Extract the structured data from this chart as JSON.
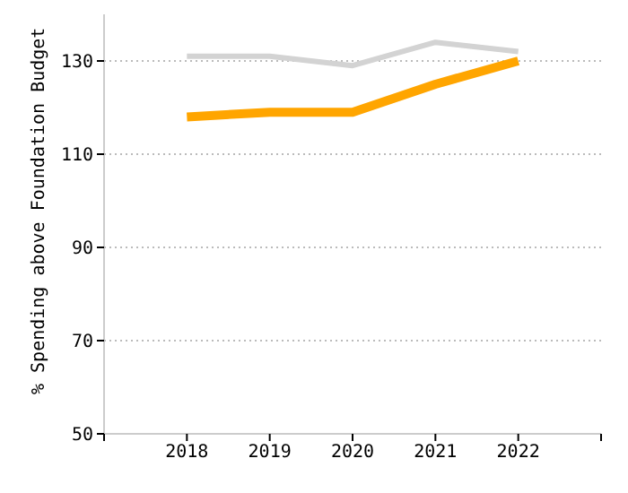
{
  "chart_data": {
    "type": "line",
    "ylabel": "% Spending above Foundation Budget",
    "x": [
      2018,
      2019,
      2020,
      2021,
      2022
    ],
    "xlim": [
      2017,
      2023
    ],
    "xticks": [
      {
        "value": 2017,
        "label": null
      },
      2018,
      2019,
      2020,
      2021,
      2022,
      {
        "value": 2023,
        "label": null
      }
    ],
    "ylim": [
      50,
      140
    ],
    "yticks": [
      50,
      70,
      90,
      110,
      130
    ],
    "grid": "y",
    "marker": "none",
    "line_style": "solid",
    "series": [
      {
        "color": "#d3d3d3",
        "values": [
          131,
          131,
          129,
          134,
          132
        ]
      },
      {
        "color": "#ffa500",
        "values": [
          118,
          119,
          119,
          125,
          130
        ]
      }
    ]
  }
}
